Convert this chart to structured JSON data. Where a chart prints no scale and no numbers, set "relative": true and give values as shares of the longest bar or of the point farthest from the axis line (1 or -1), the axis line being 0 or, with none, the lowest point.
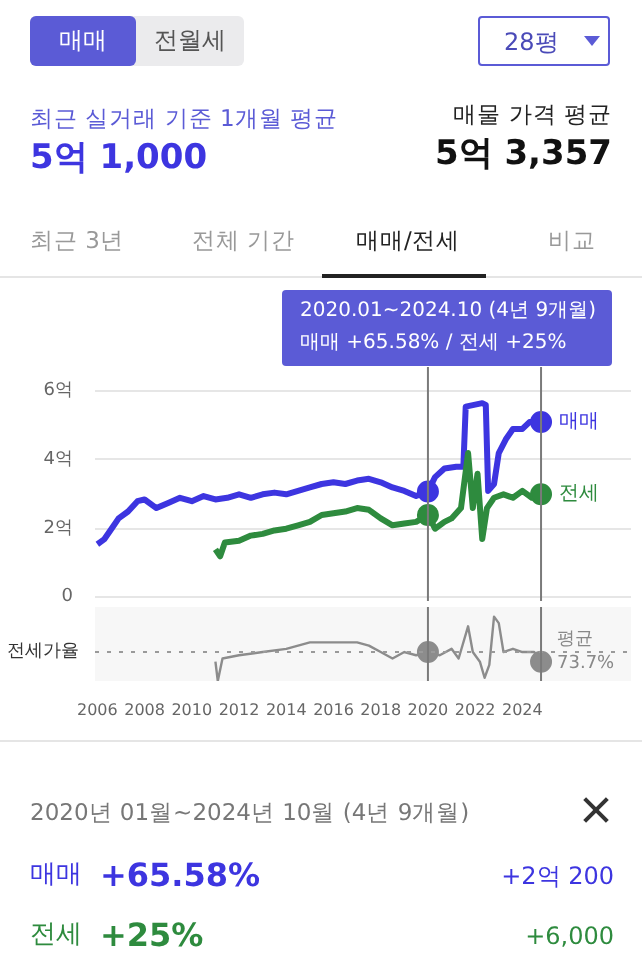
{
  "chart_data": [
    {
      "type": "line",
      "annotations": [
        "매매",
        "전월세",
        "28평",
        "최근 실거래 기준 1개월 평균",
        "5억 1,000",
        "매물 가격 평균",
        "5억 3,357",
        "최근 3년",
        "전체 기간",
        "매매/전세",
        "비교",
        "2020.01~2024.10 (4년 9개월)",
        "매매 +65.58%  /  전세 +25%"
      ],
      "xlim": [
        2005.9,
        2028.6
      ],
      "ylim": [
        -0.1,
        6.7
      ],
      "yticks": [
        {
          "value": 0,
          "label": "0"
        },
        {
          "value": 2,
          "label": "2억"
        },
        {
          "value": 4,
          "label": "4억"
        },
        {
          "value": 6,
          "label": "6억"
        }
      ],
      "tick_labels": "y",
      "grid": "y",
      "marker": "none",
      "line_style": "solid",
      "ref_lines": [
        {
          "axis": "x",
          "value": 2020.0,
          "color": "#7a7a7a"
        },
        {
          "axis": "x",
          "value": 2024.79,
          "color": "#7a7a7a"
        }
      ],
      "series": [
        {
          "name": "매매",
          "color": "#3d35e0",
          "x": [
            2006.0,
            2006.3,
            2006.6,
            2006.9,
            2007.3,
            2007.7,
            2008.0,
            2008.5,
            2009.0,
            2009.5,
            2010.0,
            2010.5,
            2011.0,
            2011.5,
            2012.0,
            2012.5,
            2013.0,
            2013.5,
            2014.0,
            2014.5,
            2015.0,
            2015.5,
            2016.0,
            2016.5,
            2017.0,
            2017.5,
            2018.0,
            2018.5,
            2019.0,
            2019.5,
            2020.0,
            2020.3,
            2020.7,
            2021.2,
            2021.5,
            2021.6,
            2022.3,
            2022.45,
            2022.55,
            2022.8,
            2023.0,
            2023.3,
            2023.6,
            2024.0,
            2024.3,
            2024.79
          ],
          "values": [
            1.55,
            1.7,
            2.0,
            2.3,
            2.5,
            2.8,
            2.85,
            2.6,
            2.75,
            2.9,
            2.8,
            2.95,
            2.85,
            2.9,
            3.0,
            2.9,
            3.0,
            3.05,
            3.0,
            3.1,
            3.2,
            3.3,
            3.35,
            3.3,
            3.4,
            3.45,
            3.35,
            3.2,
            3.1,
            2.95,
            3.08,
            3.5,
            3.75,
            3.8,
            3.8,
            5.55,
            5.65,
            5.6,
            3.1,
            3.3,
            4.2,
            4.6,
            4.9,
            4.9,
            5.1,
            5.1
          ]
        },
        {
          "name": "전세",
          "color": "#2e8b3e",
          "x": [
            2011.0,
            2011.2,
            2011.4,
            2012.0,
            2012.5,
            2013.0,
            2013.5,
            2014.0,
            2014.5,
            2015.0,
            2015.5,
            2016.0,
            2016.5,
            2017.0,
            2017.5,
            2018.0,
            2018.5,
            2019.0,
            2019.5,
            2020.0,
            2020.3,
            2020.7,
            2021.0,
            2021.4,
            2021.7,
            2021.9,
            2022.1,
            2022.3,
            2022.5,
            2022.8,
            2023.2,
            2023.6,
            2024.0,
            2024.4,
            2024.79
          ],
          "values": [
            1.4,
            1.2,
            1.6,
            1.65,
            1.8,
            1.85,
            1.95,
            2.0,
            2.1,
            2.2,
            2.4,
            2.45,
            2.5,
            2.6,
            2.55,
            2.3,
            2.1,
            2.15,
            2.2,
            2.4,
            2.0,
            2.2,
            2.3,
            2.6,
            4.2,
            2.6,
            3.6,
            1.7,
            2.6,
            2.9,
            3.0,
            2.9,
            3.1,
            2.9,
            3.0
          ]
        }
      ]
    },
    {
      "type": "line",
      "relative": true,
      "ylabel": "전세가율",
      "xlim": [
        2005.9,
        2028.6
      ],
      "xticks": [
        2006,
        2008,
        2010,
        2012,
        2014,
        2016,
        2018,
        2020,
        2022,
        2024
      ],
      "tick_labels": "x",
      "grid": false,
      "marker": "none",
      "ref_lines": [
        {
          "axis": "y",
          "value": 0.45,
          "label": "평균 73.7%",
          "line_style": "dotted",
          "color": "#9a9a9a"
        },
        {
          "axis": "x",
          "value": 2020.0,
          "color": "#7a7a7a"
        },
        {
          "axis": "x",
          "value": 2024.79,
          "color": "#7a7a7a"
        }
      ],
      "series": [
        {
          "color": "#8c8c8c",
          "x": [
            2011.0,
            2011.1,
            2011.3,
            2012.0,
            2013.0,
            2014.0,
            2015.0,
            2016.0,
            2017.0,
            2017.5,
            2018.0,
            2018.5,
            2019.0,
            2019.5,
            2020.0,
            2020.5,
            2021.0,
            2021.3,
            2021.7,
            2021.9,
            2022.2,
            2022.4,
            2022.6,
            2022.8,
            2023.0,
            2023.2,
            2023.6,
            2024.0,
            2024.5,
            2024.79
          ],
          "values": [
            0.3,
            0.0,
            0.35,
            0.4,
            0.45,
            0.5,
            0.6,
            0.6,
            0.6,
            0.55,
            0.45,
            0.35,
            0.45,
            0.4,
            0.45,
            0.4,
            0.5,
            0.35,
            0.85,
            0.45,
            0.3,
            0.05,
            0.25,
            1.0,
            0.9,
            0.45,
            0.5,
            0.45,
            0.45,
            0.3
          ]
        }
      ]
    },
    {
      "type": "other",
      "annotations": [
        "2020년 01월~2024년 10월 (4년 9개월)",
        "매매",
        "+65.58%",
        "+2억 200",
        "전세",
        "+25%",
        "+6,000"
      ]
    }
  ]
}
